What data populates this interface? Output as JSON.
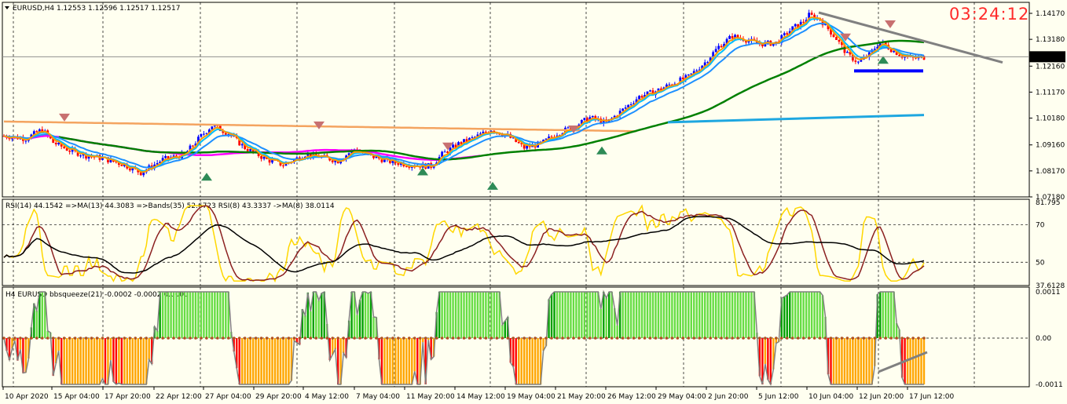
{
  "main_panel": {
    "header_symbol": "EURUSD,H4",
    "header_prices": "1.12553 1.12596 1.12517 1.12517",
    "clock": "03:24:12",
    "current_price_tag": "1.12517",
    "price_ticks": [
      "1.14170",
      "1.13180",
      "1.12160",
      "1.11170",
      "1.10180",
      "1.09160",
      "1.08170",
      "1.07180"
    ],
    "colors": {
      "bull_bar": "#0000ff",
      "bear_bar": "#ff0000",
      "ema_fast": "#00bfff",
      "ema_orange": "#ff9900",
      "ma_tan": "#f4a460",
      "ma_magenta": "#ff00ff",
      "ma_green": "#008000",
      "ma_cyan": "#1ea7e0",
      "trendline": "#808080",
      "support": "#0000ff"
    }
  },
  "rsi_panel": {
    "header": "RSI(14) 44.1542  =>MA(13) 44.3083  =>Bands(35) 52.6723  RSI(8) 43.3337  ->MA(8) 38.0114",
    "ticks": [
      "81.795",
      "70",
      "50",
      "37.6128"
    ]
  },
  "squeeze_panel": {
    "header": "H4 EURUSD bbsqueeze(21) -0.0002 -0.0002 0.0000",
    "ticks": [
      "0.0011",
      "0.00",
      "-0.0011"
    ]
  },
  "date_labels": [
    "10 Apr 2020",
    "15 Apr 04:00",
    "17 Apr 20:00",
    "22 Apr 12:00",
    "27 Apr 04:00",
    "29 Apr 20:00",
    "4 May 12:00",
    "7 May 04:00",
    "11 May 20:00",
    "14 May 12:00",
    "19 May 04:00",
    "21 May 20:00",
    "26 May 12:00",
    "29 May 04:00",
    "2 Jun 20:00",
    "5 Jun 12:00",
    "10 Jun 04:00",
    "12 Jun 20:00",
    "17 Jun 12:00"
  ],
  "chart_data": {
    "type": "candlestick",
    "symbol": "EURUSD",
    "timeframe": "H4",
    "ylim": [
      1.0718,
      1.1417
    ],
    "anchors": [
      [
        0,
        1.095
      ],
      [
        8,
        1.094
      ],
      [
        14,
        1.0975
      ],
      [
        18,
        1.0925
      ],
      [
        24,
        1.0895
      ],
      [
        30,
        1.0875
      ],
      [
        36,
        1.0865
      ],
      [
        44,
        1.084
      ],
      [
        50,
        1.081
      ],
      [
        58,
        1.086
      ],
      [
        66,
        1.088
      ],
      [
        72,
        1.095
      ],
      [
        76,
        1.099
      ],
      [
        82,
        1.096
      ],
      [
        88,
        1.0905
      ],
      [
        96,
        1.086
      ],
      [
        102,
        1.084
      ],
      [
        110,
        1.088
      ],
      [
        116,
        1.087
      ],
      [
        122,
        1.0855
      ],
      [
        128,
        1.09
      ],
      [
        132,
        1.088
      ],
      [
        140,
        1.0855
      ],
      [
        148,
        1.084
      ],
      [
        156,
        1.0835
      ],
      [
        160,
        1.088
      ],
      [
        166,
        1.092
      ],
      [
        172,
        1.0945
      ],
      [
        178,
        1.0975
      ],
      [
        184,
        1.095
      ],
      [
        190,
        1.0905
      ],
      [
        196,
        1.092
      ],
      [
        202,
        1.096
      ],
      [
        208,
        1.0985
      ],
      [
        214,
        1.102
      ],
      [
        220,
        1.1
      ],
      [
        226,
        1.105
      ],
      [
        232,
        1.11
      ],
      [
        238,
        1.112
      ],
      [
        244,
        1.115
      ],
      [
        250,
        1.1175
      ],
      [
        256,
        1.123
      ],
      [
        261,
        1.129
      ],
      [
        266,
        1.133
      ],
      [
        270,
        1.132
      ],
      [
        276,
        1.13
      ],
      [
        282,
        1.1305
      ],
      [
        288,
        1.136
      ],
      [
        292,
        1.1385
      ],
      [
        294,
        1.141
      ],
      [
        298,
        1.1395
      ],
      [
        304,
        1.132
      ],
      [
        308,
        1.126
      ],
      [
        312,
        1.123
      ],
      [
        316,
        1.126
      ],
      [
        320,
        1.131
      ],
      [
        324,
        1.128
      ],
      [
        328,
        1.1255
      ],
      [
        332,
        1.1245
      ],
      [
        336,
        1.125
      ]
    ],
    "indicators": {
      "rsi_header": "RSI(14) 44.1542  =>MA(13) 44.3083  =>Bands(35) 52.6723  RSI(8) 43.3337  ->MA(8) 38.0114",
      "bbsqueeze_header": "H4 EURUSD bbsqueeze(21) -0.0002 -0.0002 0.0000"
    }
  }
}
